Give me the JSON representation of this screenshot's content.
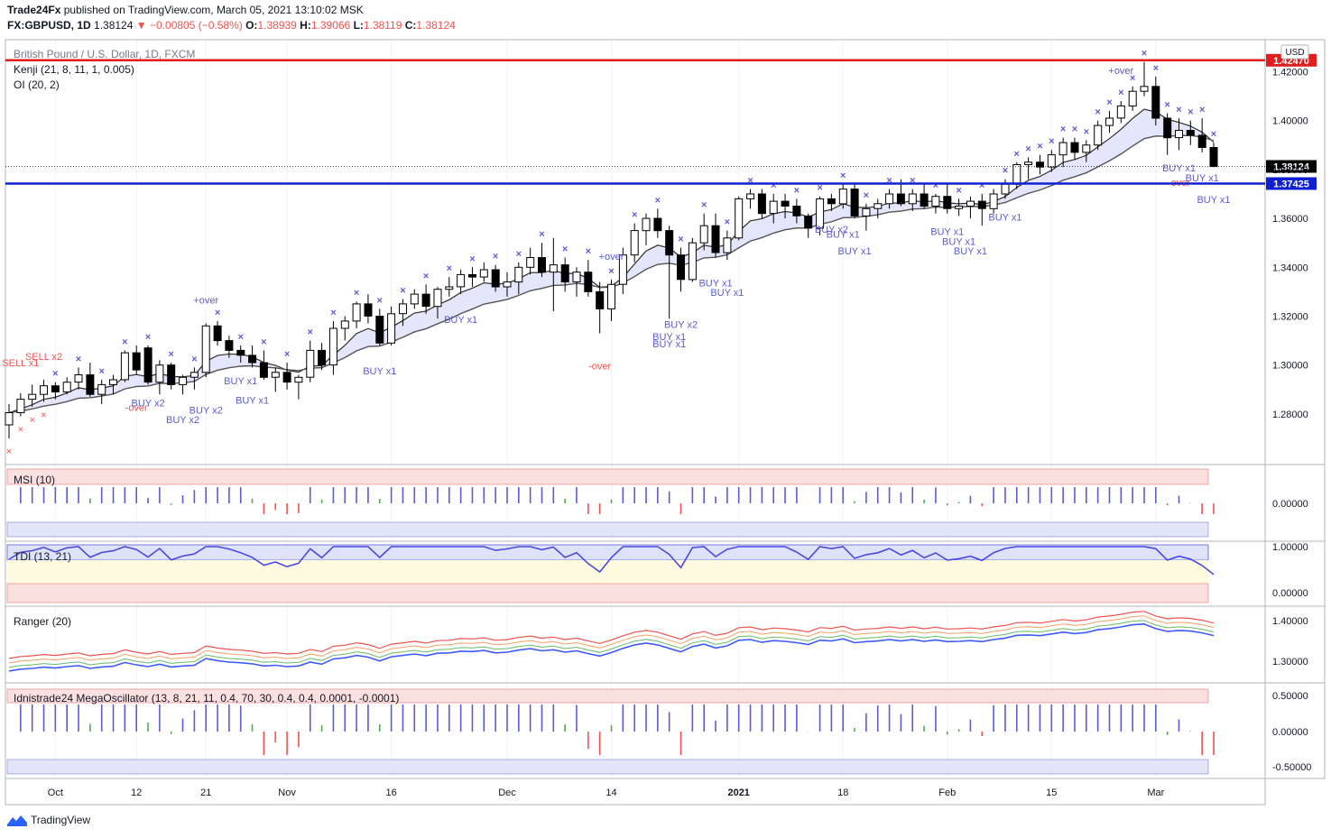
{
  "header": {
    "publisher": "Trade24Fx",
    "published_text": "published on TradingView.com, March 05, 2021 13:10:02 MSK",
    "symbol": "FX:GBPUSD, 1D",
    "last": "1.38124",
    "change": "−0.00805 (−0.58%)",
    "o_label": "O:",
    "o_value": "1.38939",
    "h_label": "H:",
    "h_value": "1.39066",
    "l_label": "L:",
    "l_value": "1.38119",
    "c_label": "C:",
    "c_value": "1.38124"
  },
  "legend": {
    "title": "British Pound / U.S. Dollar, 1D, FXCM",
    "kenji": "Kenji (21, 8, 11, 1, 0.005)",
    "oi": "OI (20, 2)",
    "msi": "MSI (10)",
    "tdi": "TDI (13, 21)",
    "ranger": "Ranger (20)",
    "mega": "Idnistrade24 MegaOscillator (13, 8, 21, 11, 0.4, 70, 30, 0.4, 0.4, 0.0001, -0.0001)"
  },
  "footer": {
    "brand": "TradingView"
  },
  "colors": {
    "up_candle": "#ffffff",
    "down_candle": "#000000",
    "blue": "#5b5bd6",
    "red_line": "#e01e1e",
    "blue_line": "#1020d0",
    "green": "#4caf50",
    "red": "#ef5350"
  },
  "chart_data": {
    "type": "candlestick",
    "title": "British Pound / U.S. Dollar, 1D, FXCM",
    "currency": "USD",
    "x_tick_labels": [
      "Oct",
      "12",
      "21",
      "Nov",
      "16",
      "Dec",
      "14",
      "2021",
      "18",
      "Feb",
      "15",
      "Mar"
    ],
    "y_tick_labels": [
      "1.42000",
      "1.40000",
      "1.38000",
      "1.36000",
      "1.34000",
      "1.32000",
      "1.30000",
      "1.28000"
    ],
    "ylim": [
      1.262,
      1.432
    ],
    "price_tags": [
      {
        "value": "1.42470",
        "kind": "resistance"
      },
      {
        "value": "1.38124",
        "kind": "last"
      },
      {
        "value": "1.37425",
        "kind": "support"
      }
    ],
    "signals": [
      "SELL x2",
      "SELL x1",
      "-over",
      "BUY x2",
      "BUY x2",
      "BUY x2",
      "+over",
      "BUY x1",
      "BUY x1",
      "BUY x1",
      "BUY x1",
      "-over",
      "+over",
      "BUY x1",
      "BUY x2",
      "BUY x1",
      "BUY x1",
      "BUY x1",
      "BUY x2",
      "BUY x1",
      "BUY x1",
      "BUY x1",
      "BUY x1",
      "BUY x1",
      "BUY x1",
      "+over",
      "-over",
      "BUY x1",
      "BUY x1",
      "BUY x1"
    ],
    "candles": [
      [
        1.2755,
        1.284,
        1.27,
        1.2805
      ],
      [
        1.2805,
        1.2885,
        1.279,
        1.286
      ],
      [
        1.286,
        1.292,
        1.283,
        1.288
      ],
      [
        1.288,
        1.294,
        1.285,
        1.2915
      ],
      [
        1.2915,
        1.293,
        1.286,
        1.289
      ],
      [
        1.289,
        1.295,
        1.288,
        1.293
      ],
      [
        1.293,
        1.299,
        1.29,
        1.296
      ],
      [
        1.296,
        1.301,
        1.287,
        1.288
      ],
      [
        1.288,
        1.294,
        1.284,
        1.292
      ],
      [
        1.292,
        1.296,
        1.288,
        1.294
      ],
      [
        1.294,
        1.306,
        1.293,
        1.305
      ],
      [
        1.305,
        1.308,
        1.296,
        1.298
      ],
      [
        1.307,
        1.308,
        1.292,
        1.293
      ],
      [
        1.293,
        1.302,
        1.288,
        1.3
      ],
      [
        1.3,
        1.301,
        1.29,
        1.292
      ],
      [
        1.292,
        1.296,
        1.288,
        1.295
      ],
      [
        1.295,
        1.299,
        1.29,
        1.297
      ],
      [
        1.297,
        1.317,
        1.295,
        1.316
      ],
      [
        1.316,
        1.318,
        1.308,
        1.31
      ],
      [
        1.31,
        1.312,
        1.303,
        1.306
      ],
      [
        1.306,
        1.308,
        1.301,
        1.304
      ],
      [
        1.304,
        1.308,
        1.299,
        1.301
      ],
      [
        1.301,
        1.306,
        1.294,
        1.295
      ],
      [
        1.295,
        1.299,
        1.289,
        1.297
      ],
      [
        1.297,
        1.301,
        1.29,
        1.293
      ],
      [
        1.293,
        1.296,
        1.286,
        1.295
      ],
      [
        1.295,
        1.31,
        1.293,
        1.306
      ],
      [
        1.306,
        1.309,
        1.298,
        1.3
      ],
      [
        1.3,
        1.318,
        1.296,
        1.315
      ],
      [
        1.315,
        1.32,
        1.31,
        1.318
      ],
      [
        1.318,
        1.326,
        1.315,
        1.325
      ],
      [
        1.325,
        1.329,
        1.317,
        1.32
      ],
      [
        1.32,
        1.323,
        1.308,
        1.309
      ],
      [
        1.309,
        1.324,
        1.308,
        1.321
      ],
      [
        1.321,
        1.327,
        1.316,
        1.325
      ],
      [
        1.325,
        1.331,
        1.323,
        1.329
      ],
      [
        1.329,
        1.333,
        1.321,
        1.324
      ],
      [
        1.324,
        1.332,
        1.319,
        1.331
      ],
      [
        1.331,
        1.336,
        1.328,
        1.332
      ],
      [
        1.332,
        1.339,
        1.329,
        1.337
      ],
      [
        1.337,
        1.34,
        1.332,
        1.336
      ],
      [
        1.336,
        1.342,
        1.334,
        1.339
      ],
      [
        1.339,
        1.341,
        1.33,
        1.332
      ],
      [
        1.332,
        1.338,
        1.328,
        1.334
      ],
      [
        1.334,
        1.342,
        1.329,
        1.34
      ],
      [
        1.34,
        1.348,
        1.337,
        1.344
      ],
      [
        1.344,
        1.35,
        1.336,
        1.338
      ],
      [
        1.338,
        1.352,
        1.322,
        1.341
      ],
      [
        1.341,
        1.344,
        1.33,
        1.334
      ],
      [
        1.334,
        1.34,
        1.328,
        1.338
      ],
      [
        1.338,
        1.343,
        1.328,
        1.33
      ],
      [
        1.33,
        1.334,
        1.313,
        1.323
      ],
      [
        1.323,
        1.335,
        1.318,
        1.333
      ],
      [
        1.333,
        1.348,
        1.329,
        1.345
      ],
      [
        1.345,
        1.358,
        1.342,
        1.355
      ],
      [
        1.355,
        1.362,
        1.349,
        1.36
      ],
      [
        1.36,
        1.364,
        1.352,
        1.355
      ],
      [
        1.355,
        1.357,
        1.319,
        1.345
      ],
      [
        1.345,
        1.348,
        1.33,
        1.335
      ],
      [
        1.335,
        1.352,
        1.334,
        1.35
      ],
      [
        1.35,
        1.362,
        1.347,
        1.357
      ],
      [
        1.357,
        1.362,
        1.344,
        1.346
      ],
      [
        1.346,
        1.355,
        1.343,
        1.352
      ],
      [
        1.352,
        1.369,
        1.351,
        1.368
      ],
      [
        1.368,
        1.372,
        1.364,
        1.37
      ],
      [
        1.37,
        1.372,
        1.36,
        1.362
      ],
      [
        1.362,
        1.37,
        1.358,
        1.367
      ],
      [
        1.367,
        1.37,
        1.36,
        1.365
      ],
      [
        1.365,
        1.368,
        1.358,
        1.361
      ],
      [
        1.361,
        1.362,
        1.352,
        1.356
      ],
      [
        1.356,
        1.369,
        1.353,
        1.368
      ],
      [
        1.368,
        1.37,
        1.363,
        1.366
      ],
      [
        1.366,
        1.374,
        1.364,
        1.372
      ],
      [
        1.372,
        1.374,
        1.36,
        1.361
      ],
      [
        1.361,
        1.366,
        1.355,
        1.364
      ],
      [
        1.364,
        1.368,
        1.36,
        1.366
      ],
      [
        1.366,
        1.372,
        1.364,
        1.37
      ],
      [
        1.37,
        1.376,
        1.365,
        1.366
      ],
      [
        1.366,
        1.372,
        1.363,
        1.37
      ],
      [
        1.37,
        1.374,
        1.364,
        1.365
      ],
      [
        1.365,
        1.37,
        1.362,
        1.369
      ],
      [
        1.369,
        1.374,
        1.362,
        1.364
      ],
      [
        1.364,
        1.368,
        1.361,
        1.365
      ],
      [
        1.365,
        1.369,
        1.36,
        1.367
      ],
      [
        1.367,
        1.37,
        1.357,
        1.364
      ],
      [
        1.364,
        1.372,
        1.362,
        1.37
      ],
      [
        1.37,
        1.376,
        1.368,
        1.374
      ],
      [
        1.374,
        1.383,
        1.372,
        1.382
      ],
      [
        1.382,
        1.385,
        1.376,
        1.383
      ],
      [
        1.383,
        1.386,
        1.378,
        1.381
      ],
      [
        1.381,
        1.388,
        1.379,
        1.386
      ],
      [
        1.386,
        1.393,
        1.381,
        1.391
      ],
      [
        1.391,
        1.393,
        1.384,
        1.387
      ],
      [
        1.387,
        1.392,
        1.383,
        1.39
      ],
      [
        1.39,
        1.4,
        1.388,
        1.398
      ],
      [
        1.398,
        1.404,
        1.395,
        1.401
      ],
      [
        1.401,
        1.408,
        1.399,
        1.406
      ],
      [
        1.406,
        1.414,
        1.404,
        1.412
      ],
      [
        1.412,
        1.424,
        1.41,
        1.414
      ],
      [
        1.414,
        1.418,
        1.398,
        1.401
      ],
      [
        1.401,
        1.403,
        1.386,
        1.393
      ],
      [
        1.393,
        1.401,
        1.388,
        1.396
      ],
      [
        1.396,
        1.4,
        1.39,
        1.394
      ],
      [
        1.394,
        1.401,
        1.387,
        1.389
      ],
      [
        1.389,
        1.391,
        1.381,
        1.3812
      ]
    ]
  }
}
